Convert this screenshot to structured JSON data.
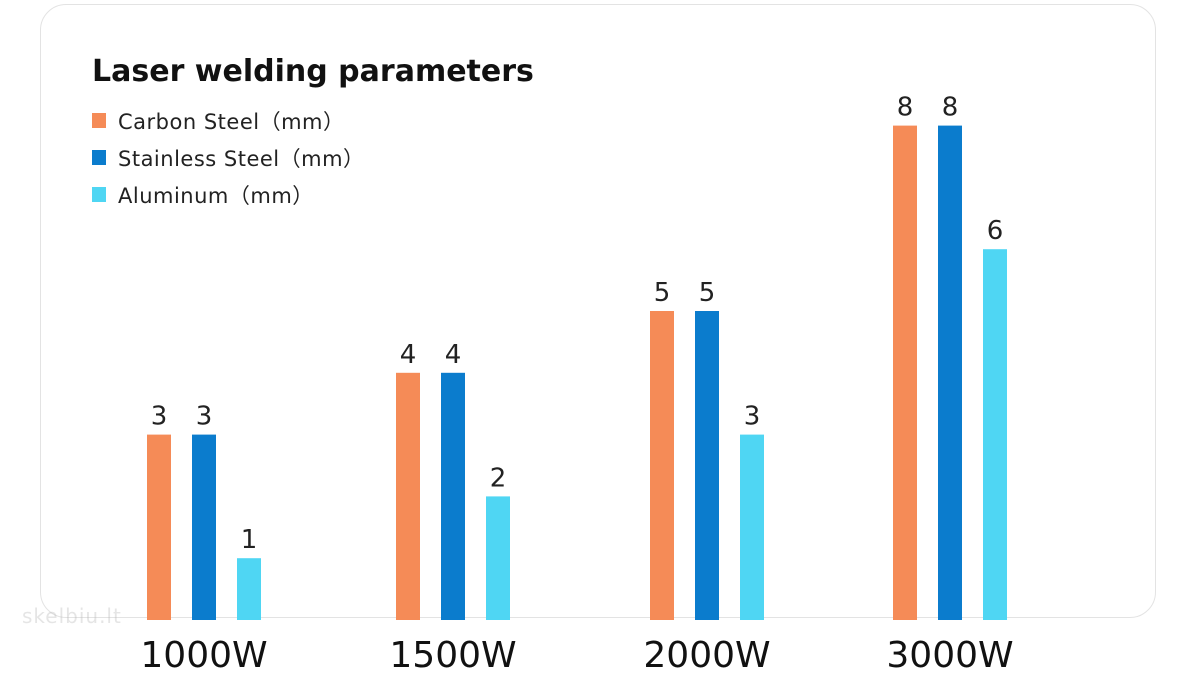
{
  "chart_data": {
    "type": "bar",
    "title": "Laser welding parameters",
    "categories": [
      "1000W",
      "1500W",
      "2000W",
      "3000W"
    ],
    "series": [
      {
        "name": "Carbon Steel（mm）",
        "values": [
          3,
          4,
          5,
          8
        ],
        "color": "#f58b57"
      },
      {
        "name": "Stainless Steel（mm）",
        "values": [
          3,
          4,
          5,
          8
        ],
        "color": "#0b7ccd"
      },
      {
        "name": "Aluminum（mm）",
        "values": [
          1,
          2,
          3,
          6
        ],
        "color": "#4fd6f3"
      }
    ],
    "ylim": [
      0,
      10
    ],
    "grid": false,
    "legend_position": "top-left",
    "data_labels": true
  },
  "watermark": "skelbiu.lt"
}
